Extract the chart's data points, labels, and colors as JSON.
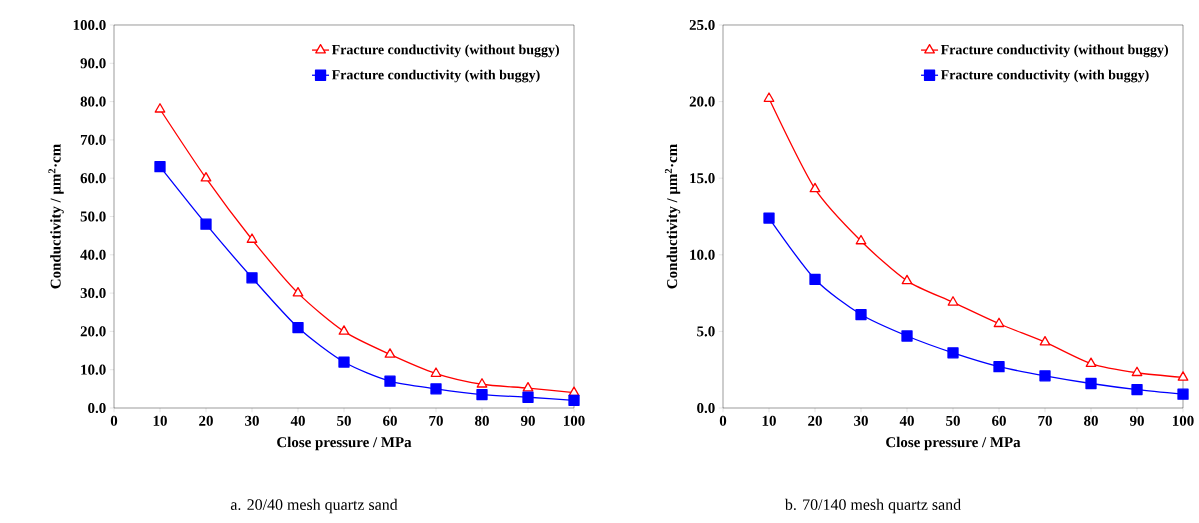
{
  "chart_data": [
    {
      "type": "line",
      "xlabel": "Close pressure / MPa",
      "ylabel": "Conductivity / μm$^{2}$·cm",
      "annotations": [
        "a. 20/40 mesh quartz sand"
      ],
      "x": [
        10,
        20,
        30,
        40,
        50,
        60,
        70,
        80,
        90,
        100
      ],
      "series": [
        {
          "name": "Fracture conductivity (without buggy)",
          "color": "#ff0000",
          "marker": "triangle",
          "values": [
            78,
            60,
            44,
            30,
            20,
            14,
            9,
            6.2,
            5.2,
            4
          ]
        },
        {
          "name": "Fracture conductivity (with buggy)",
          "color": "#0000ff",
          "marker": "square",
          "values": [
            63,
            48,
            34,
            21,
            12,
            7,
            5,
            3.5,
            2.8,
            2
          ]
        }
      ],
      "xlim": [
        0,
        100
      ],
      "xticks": [
        0,
        10,
        20,
        30,
        40,
        50,
        60,
        70,
        80,
        90,
        100
      ],
      "ylim": [
        0,
        100
      ],
      "yticks": [
        {
          "value": 0,
          "label": "0.0"
        },
        {
          "value": 10,
          "label": "10.0"
        },
        {
          "value": 20,
          "label": "20.0"
        },
        {
          "value": 30,
          "label": "30.0"
        },
        {
          "value": 40,
          "label": "40.0"
        },
        {
          "value": 50,
          "label": "50.0"
        },
        {
          "value": 60,
          "label": "60.0"
        },
        {
          "value": 70,
          "label": "70.0"
        },
        {
          "value": 80,
          "label": "80.0"
        },
        {
          "value": 90,
          "label": "90.0"
        },
        {
          "value": 100,
          "label": "100.0"
        }
      ],
      "legend": "top right",
      "grid": false
    },
    {
      "type": "line",
      "xlabel": "Close pressure / MPa",
      "ylabel": "Conductivity / μm$^{2}$·cm",
      "annotations": [
        "b. 70/140 mesh quartz sand"
      ],
      "x": [
        10,
        20,
        30,
        40,
        50,
        60,
        70,
        80,
        90,
        100
      ],
      "series": [
        {
          "name": "Fracture conductivity (without buggy)",
          "color": "#ff0000",
          "marker": "triangle",
          "values": [
            20.2,
            14.3,
            10.9,
            8.3,
            6.9,
            5.5,
            4.3,
            2.9,
            2.3,
            2.0
          ]
        },
        {
          "name": "Fracture conductivity (with buggy)",
          "color": "#0000ff",
          "marker": "square",
          "values": [
            12.4,
            8.4,
            6.1,
            4.7,
            3.6,
            2.7,
            2.1,
            1.6,
            1.2,
            0.9
          ]
        }
      ],
      "xlim": [
        0,
        100
      ],
      "xticks": [
        0,
        10,
        20,
        30,
        40,
        50,
        60,
        70,
        80,
        90,
        100
      ],
      "ylim": [
        0,
        25
      ],
      "yticks": [
        {
          "value": 0,
          "label": "0.0"
        },
        {
          "value": 5,
          "label": "5.0"
        },
        {
          "value": 10,
          "label": "10.0"
        },
        {
          "value": 15,
          "label": "15.0"
        },
        {
          "value": 20,
          "label": "20.0"
        },
        {
          "value": 25,
          "label": "25.0"
        }
      ],
      "legend": "top right",
      "grid": false
    }
  ]
}
